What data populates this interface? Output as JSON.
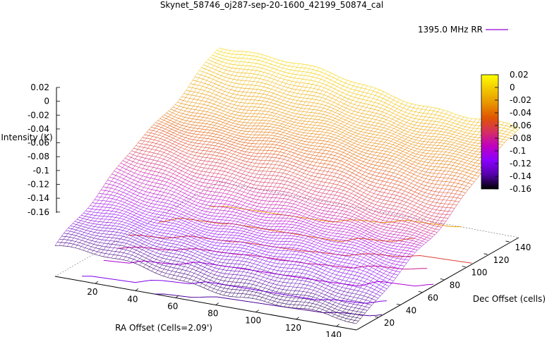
{
  "chart_data": {
    "type": "surface3d",
    "title": "Skynet_58746_oj287-sep-20-1600_42199_50874_cal",
    "xlabel": "RA Offset (Cells=2.09')",
    "ylabel": "Dec Offset (cells)",
    "zlabel": "Intensity (K)",
    "xticks": [
      "20",
      "40",
      "60",
      "80",
      "100",
      "120",
      "140"
    ],
    "yticks": [
      "20",
      "40",
      "60",
      "80",
      "100",
      "120",
      "140"
    ],
    "zticks": [
      "0.02",
      "0",
      "-0.02",
      "-0.04",
      "-0.06",
      "-0.08",
      "-0.1",
      "-0.12",
      "-0.14",
      "-0.16"
    ],
    "xlim": [
      0,
      150
    ],
    "ylim": [
      0,
      150
    ],
    "zlim": [
      -0.17,
      0.025
    ],
    "legend": {
      "label": "1395.0 MHz RR",
      "position": "top-right"
    },
    "colorbar": {
      "ticks": [
        "0.02",
        "0",
        "-0.02",
        "-0.04",
        "-0.06",
        "-0.08",
        "-0.1",
        "-0.12",
        "-0.14",
        "-0.16"
      ],
      "range": [
        -0.16,
        0.02
      ],
      "colors": [
        "#000000",
        "#5500aa",
        "#8a00ff",
        "#c000c0",
        "#d53060",
        "#e05500",
        "#e89500",
        "#f2c800",
        "#ffff00"
      ]
    },
    "surface_corners": [
      {
        "x": 0,
        "y": 0,
        "z": -0.13
      },
      {
        "x": 150,
        "y": 0,
        "z": -0.16
      },
      {
        "x": 0,
        "y": 150,
        "z": 0.02
      },
      {
        "x": 150,
        "y": 150,
        "z": -0.02
      }
    ],
    "contour_levels": [
      -0.14,
      -0.12,
      -0.1,
      -0.08,
      -0.06,
      -0.04,
      -0.02
    ],
    "grid": false
  }
}
